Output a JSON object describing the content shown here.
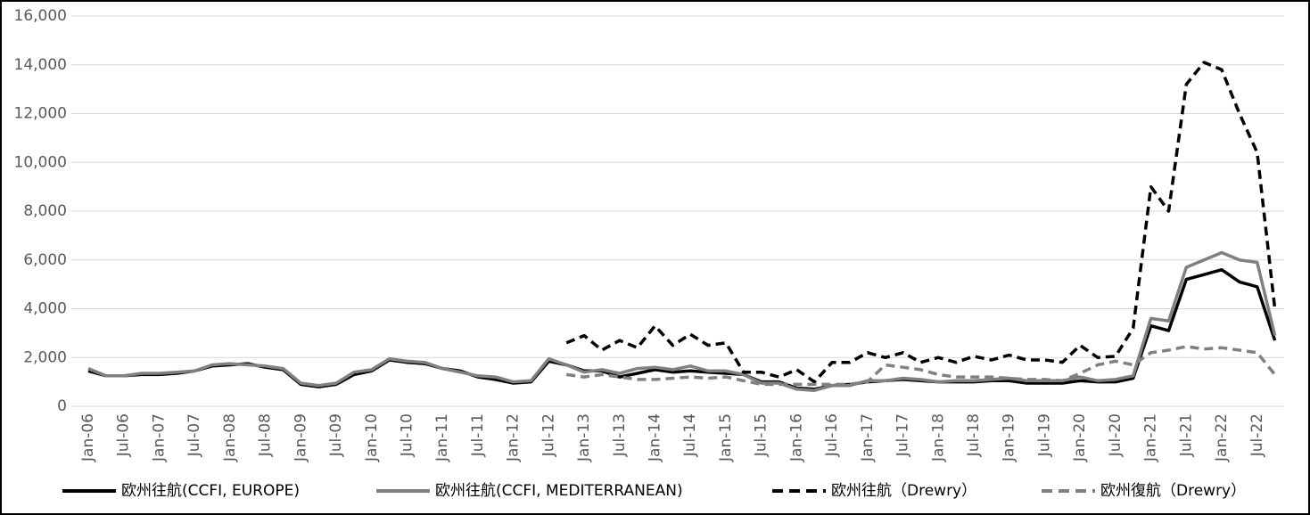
{
  "chart_data": {
    "type": "line",
    "categories": [
      "Jan-06",
      null,
      "Jul-06",
      null,
      "Jan-07",
      null,
      "Jul-07",
      null,
      "Jan-08",
      null,
      "Jul-08",
      null,
      "Jan-09",
      null,
      "Jul-09",
      null,
      "Jan-10",
      null,
      "Jul-10",
      null,
      "Jan-11",
      null,
      "Jul-11",
      null,
      "Jan-12",
      null,
      "Jul-12",
      null,
      "Jan-13",
      null,
      "Jul-13",
      null,
      "Jan-14",
      null,
      "Jul-14",
      null,
      "Jan-15",
      null,
      "Jul-15",
      null,
      "Jan-16",
      null,
      "Jul-16",
      null,
      "Jan-17",
      null,
      "Jul-17",
      null,
      "Jan-18",
      null,
      "Jul-18",
      null,
      "Jan-19",
      null,
      "Jul-19",
      null,
      "Jan-20",
      null,
      "Jul-20",
      null,
      "Jan-21",
      null,
      "Jul-21",
      null,
      "Jan-22",
      null,
      "Jul-22",
      null
    ],
    "series": [
      {
        "name": "欧州往航(CCFI, EUROPE)",
        "color": "#000000",
        "dashed": false,
        "values": [
          1450,
          1250,
          1250,
          1300,
          1300,
          1350,
          1450,
          1650,
          1700,
          1750,
          1600,
          1500,
          900,
          800,
          900,
          1300,
          1450,
          1900,
          1800,
          1750,
          1550,
          1450,
          1200,
          1100,
          950,
          1000,
          1850,
          1700,
          1450,
          1450,
          1200,
          1350,
          1500,
          1400,
          1450,
          1400,
          1350,
          1300,
          1000,
          1000,
          750,
          700,
          850,
          900,
          1000,
          1050,
          1100,
          1050,
          1000,
          1000,
          1000,
          1050,
          1050,
          950,
          950,
          950,
          1050,
          1000,
          1000,
          1150,
          3300,
          3100,
          5200,
          5400,
          5600,
          5100,
          4900,
          2700
        ]
      },
      {
        "name": "欧州往航(CCFI, MEDITERRANEAN)",
        "color": "#808080",
        "dashed": false,
        "values": [
          1550,
          1250,
          1250,
          1350,
          1350,
          1400,
          1450,
          1700,
          1750,
          1700,
          1650,
          1550,
          950,
          850,
          950,
          1400,
          1500,
          1950,
          1850,
          1800,
          1550,
          1400,
          1250,
          1200,
          1000,
          1050,
          1950,
          1700,
          1400,
          1500,
          1350,
          1550,
          1600,
          1500,
          1650,
          1450,
          1450,
          1300,
          950,
          950,
          700,
          650,
          850,
          850,
          1050,
          1050,
          1150,
          1100,
          1000,
          1050,
          1050,
          1100,
          1150,
          1050,
          1050,
          1050,
          1200,
          1050,
          1100,
          1250,
          3600,
          3500,
          5700,
          6000,
          6300,
          6000,
          5900,
          2900
        ]
      },
      {
        "name": "欧州往航（Drewry）",
        "color": "#000000",
        "dashed": true,
        "values": [
          null,
          null,
          null,
          null,
          null,
          null,
          null,
          null,
          null,
          null,
          null,
          null,
          null,
          null,
          null,
          null,
          null,
          null,
          null,
          null,
          null,
          null,
          null,
          null,
          null,
          null,
          null,
          2600,
          2900,
          2300,
          2700,
          2400,
          3300,
          2500,
          2950,
          2500,
          2600,
          1400,
          1400,
          1200,
          1500,
          1000,
          1800,
          1800,
          2200,
          2000,
          2200,
          1800,
          2000,
          1800,
          2050,
          1900,
          2100,
          1900,
          1900,
          1800,
          2500,
          2000,
          2050,
          3200,
          9000,
          8000,
          13200,
          14100,
          13800,
          12000,
          10400,
          4000
        ]
      },
      {
        "name": "欧州復航（Drewry）",
        "color": "#808080",
        "dashed": true,
        "values": [
          null,
          null,
          null,
          null,
          null,
          null,
          null,
          null,
          null,
          null,
          null,
          null,
          null,
          null,
          null,
          null,
          null,
          null,
          null,
          null,
          null,
          null,
          null,
          null,
          null,
          null,
          null,
          1300,
          1200,
          1300,
          1200,
          1100,
          1100,
          1150,
          1200,
          1150,
          1200,
          1050,
          900,
          900,
          900,
          900,
          900,
          900,
          1000,
          1700,
          1600,
          1500,
          1300,
          1200,
          1200,
          1200,
          1150,
          1100,
          1100,
          1050,
          1350,
          1700,
          1850,
          1700,
          2200,
          2300,
          2450,
          2350,
          2400,
          2300,
          2200,
          1300
        ]
      }
    ],
    "ylim": [
      0,
      16000
    ],
    "yticks": [
      0,
      {
        "value": 2000,
        "label": "2,000"
      },
      {
        "value": 4000,
        "label": "4,000"
      },
      {
        "value": 6000,
        "label": "6,000"
      },
      {
        "value": 8000,
        "label": "8,000"
      },
      {
        "value": 10000,
        "label": "10,000"
      },
      {
        "value": 12000,
        "label": "12,000"
      },
      {
        "value": 14000,
        "label": "14,000"
      },
      {
        "value": 16000,
        "label": "16,000"
      }
    ],
    "grid": true,
    "legend": "bottom"
  }
}
